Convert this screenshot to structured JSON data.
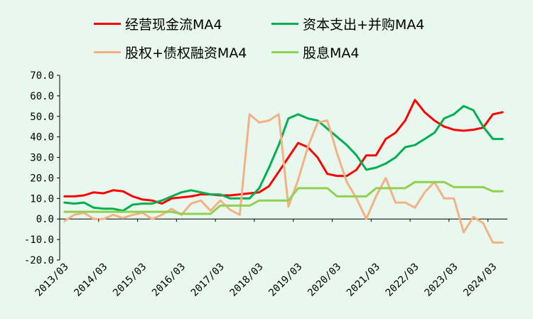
{
  "chart_data": {
    "type": "line",
    "title": "",
    "xlabel": "",
    "ylabel": "",
    "ylim": [
      -20,
      70
    ],
    "yticks": [
      "70.0",
      "60.0",
      "50.0",
      "40.0",
      "30.0",
      "20.0",
      "10.0",
      "0.0",
      "-10.0",
      "-20.0"
    ],
    "ytick_values": [
      70,
      60,
      50,
      40,
      30,
      20,
      10,
      0,
      -10,
      -20
    ],
    "xtick_labels": [
      "2013/03",
      "2014/03",
      "2015/03",
      "2016/03",
      "2017/03",
      "2018/03",
      "2019/03",
      "2020/03",
      "2021/03",
      "2022/03",
      "2023/03",
      "2024/03"
    ],
    "x": [
      "2013Q1",
      "2013Q2",
      "2013Q3",
      "2013Q4",
      "2014Q1",
      "2014Q2",
      "2014Q3",
      "2014Q4",
      "2015Q1",
      "2015Q2",
      "2015Q3",
      "2015Q4",
      "2016Q1",
      "2016Q2",
      "2016Q3",
      "2016Q4",
      "2017Q1",
      "2017Q2",
      "2017Q3",
      "2017Q4",
      "2018Q1",
      "2018Q2",
      "2018Q3",
      "2018Q4",
      "2019Q1",
      "2019Q2",
      "2019Q3",
      "2019Q4",
      "2020Q1",
      "2020Q2",
      "2020Q3",
      "2020Q4",
      "2021Q1",
      "2021Q2",
      "2021Q3",
      "2021Q4",
      "2022Q1",
      "2022Q2",
      "2022Q3",
      "2022Q4",
      "2023Q1",
      "2023Q2",
      "2023Q3",
      "2023Q4",
      "2024Q1",
      "2024Q2"
    ],
    "legend_position": "top",
    "grid": false,
    "series": [
      {
        "name": "经营现金流MA4",
        "color": "#ff0000",
        "values": [
          11,
          11,
          11.5,
          13,
          12.5,
          14,
          13.5,
          11,
          9.5,
          9,
          7.5,
          10,
          10.5,
          11,
          12,
          12,
          11.5,
          11.5,
          12,
          12.5,
          13,
          16,
          23,
          30,
          37,
          35,
          30,
          22,
          21,
          21,
          24,
          31,
          31,
          39,
          42,
          48,
          58,
          52,
          48,
          45,
          43.5,
          43,
          43.5,
          44.5,
          51,
          52
        ]
      },
      {
        "name": "资本支出+并购MA4",
        "color": "#00b050",
        "values": [
          8,
          7.5,
          8,
          5.5,
          5,
          5,
          4,
          7,
          7.5,
          7.5,
          9,
          11,
          13,
          14,
          13,
          12,
          12,
          10,
          10,
          10,
          15,
          25,
          36,
          49,
          51,
          49,
          48,
          44,
          40,
          36,
          31,
          24,
          25,
          27,
          30,
          35,
          36,
          39,
          42,
          49,
          51,
          55,
          53,
          45,
          39,
          39
        ]
      },
      {
        "name": "股权+债权融资MA4",
        "color": "#f4b183",
        "values": [
          -1,
          2,
          3,
          0,
          0,
          2,
          0.5,
          2,
          3,
          0,
          2,
          5,
          2,
          7.5,
          9,
          4,
          9,
          4.5,
          2,
          51,
          47,
          48,
          51,
          6,
          19,
          35,
          47,
          48,
          32,
          18,
          10,
          0,
          11,
          20,
          8,
          8,
          5.5,
          13,
          18,
          10,
          10,
          -6.5,
          1,
          -2,
          -11.5,
          -11.5
        ]
      },
      {
        "name": "股息MA4",
        "color": "#92d050",
        "values": [
          3.5,
          3.5,
          3.5,
          3.5,
          3.5,
          3.5,
          3.5,
          3.5,
          3.5,
          3.5,
          3.5,
          3.5,
          2.5,
          2.5,
          2.5,
          2.5,
          6.5,
          6.5,
          6.5,
          6.5,
          9,
          9,
          9,
          9,
          15,
          15,
          15,
          15,
          11,
          11,
          11,
          11,
          15,
          15,
          15,
          15,
          18,
          18,
          18,
          18,
          15.5,
          15.5,
          15.5,
          15.5,
          13.5,
          13.5
        ]
      }
    ]
  }
}
